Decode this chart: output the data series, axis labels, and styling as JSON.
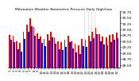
{
  "title": "Milwaukee Weather Barometric Pressure Daily High/Low",
  "background_color": "#ffffff",
  "high_color": "#ff0000",
  "low_color": "#0000ff",
  "ylim": [
    28.4,
    30.75
  ],
  "yticks": [
    28.5,
    28.75,
    29.0,
    29.25,
    29.5,
    29.75,
    30.0,
    30.25,
    30.5,
    30.75
  ],
  "ytick_labels": [
    "28.50",
    "28.75",
    "29.00",
    "29.25",
    "29.50",
    "29.75",
    "30.00",
    "30.25",
    "30.50",
    "30.75"
  ],
  "highs": [
    29.75,
    29.72,
    29.5,
    29.42,
    29.88,
    30.18,
    30.45,
    30.08,
    29.82,
    29.68,
    29.6,
    29.78,
    29.88,
    29.65,
    29.5,
    29.45,
    29.55,
    29.72,
    29.48,
    29.38,
    29.32,
    29.58,
    29.55,
    29.72,
    29.9,
    30.05,
    29.8,
    29.68,
    29.65,
    29.75,
    29.78,
    29.85
  ],
  "lows": [
    29.55,
    29.45,
    29.15,
    29.05,
    29.6,
    29.88,
    30.12,
    29.72,
    29.58,
    29.42,
    29.28,
    29.52,
    29.65,
    29.38,
    29.15,
    29.12,
    29.25,
    29.45,
    29.18,
    29.02,
    28.95,
    29.28,
    29.25,
    29.5,
    29.62,
    29.8,
    29.5,
    29.35,
    29.32,
    29.45,
    29.55,
    29.62
  ],
  "xlabels": [
    "1",
    "2",
    "3",
    "4",
    "5",
    "6",
    "7",
    "8",
    "9",
    "10",
    "11",
    "12",
    "13",
    "14",
    "15",
    "16",
    "17",
    "18",
    "19",
    "20",
    "21",
    "22",
    "23",
    "24",
    "25",
    "26",
    "27",
    "28",
    "29",
    "30",
    "31",
    "32"
  ],
  "dotted_lines": [
    22,
    23,
    24,
    25
  ],
  "bar_width": 0.42
}
